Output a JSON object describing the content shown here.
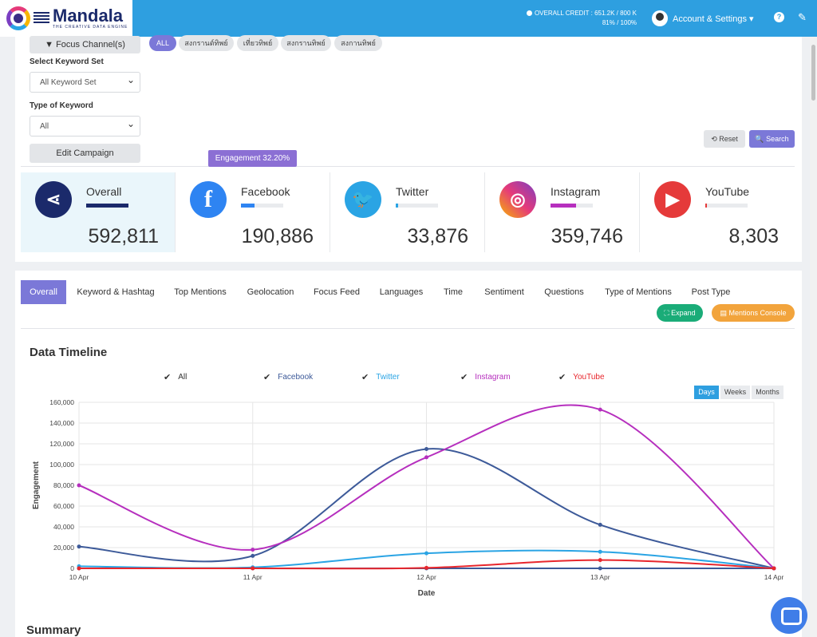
{
  "header": {
    "logo_title": "Mandala",
    "logo_sub": "THE CREATIVE DATA ENGINE",
    "credit_line1": "OVERALL CREDIT : 651.2K / 800 K",
    "credit_line2": "81% / 100%",
    "account_label": "Account & Settings ▾",
    "help": "?",
    "brush": "✎"
  },
  "filters": {
    "focus_channel": "Focus Channel(s)",
    "keyword_set_label": "Select Keyword Set",
    "keyword_set_value": "All Keyword Set",
    "type_label": "Type of Keyword",
    "type_value": "All",
    "edit_campaign": "Edit Campaign",
    "chips": [
      "ALL",
      "สงกรานต์ทิพย์",
      "เที่ยวทิพย์",
      "สงกรานทิพย์",
      "สงกานทิพย์"
    ],
    "reset": "⟲ Reset",
    "search": "🔍 Search"
  },
  "tooltip": "Engagement 32.20%",
  "stats": [
    {
      "name": "Overall",
      "value": "592,811",
      "share": 1.0,
      "color": "#1b2a6b"
    },
    {
      "name": "Facebook",
      "value": "190,886",
      "share": 0.322,
      "color": "#2e84f2"
    },
    {
      "name": "Twitter",
      "value": "33,876",
      "share": 0.057,
      "color": "#2aa4e4"
    },
    {
      "name": "Instagram",
      "value": "359,746",
      "share": 0.607,
      "color": "#b62fbe"
    },
    {
      "name": "YouTube",
      "value": "8,303",
      "share": 0.014,
      "color": "#e53a3a"
    }
  ],
  "tabs": [
    "Overall",
    "Keyword & Hashtag",
    "Top Mentions",
    "Geolocation",
    "Focus Feed",
    "Languages",
    "Time",
    "Sentiment",
    "Questions",
    "Type of Mentions",
    "Post Type"
  ],
  "actions": {
    "expand": "⛶ Expand",
    "console": "▤ Mentions Console"
  },
  "timeline_title": "Data Timeline",
  "summary_title": "Summary",
  "range_buttons": [
    "Days",
    "Weeks",
    "Months"
  ],
  "chart_data": {
    "type": "line",
    "xlabel": "Date",
    "ylabel": "Engagement",
    "x": [
      "10 Apr",
      "11 Apr",
      "12 Apr",
      "13 Apr",
      "14 Apr"
    ],
    "ylim": [
      0,
      160000
    ],
    "yticks": [
      "0",
      "20,000",
      "40,000",
      "60,000",
      "80,000",
      "100,000",
      "120,000",
      "140,000",
      "160,000"
    ],
    "series": [
      {
        "name": "All",
        "color": "#3d5a99",
        "values": [
          21000,
          12000,
          115000,
          42000,
          0
        ]
      },
      {
        "name": "Facebook",
        "color": "#3d5a99",
        "values": [
          0,
          0,
          0,
          0,
          0
        ]
      },
      {
        "name": "Twitter",
        "color": "#2aa4e4",
        "values": [
          2000,
          1000,
          14500,
          16000,
          0
        ]
      },
      {
        "name": "Instagram",
        "color": "#b62fbe",
        "values": [
          80000,
          18000,
          107000,
          153000,
          0
        ]
      },
      {
        "name": "YouTube",
        "color": "#e8262c",
        "values": [
          0,
          0,
          500,
          8000,
          0
        ]
      }
    ],
    "grid": true
  }
}
